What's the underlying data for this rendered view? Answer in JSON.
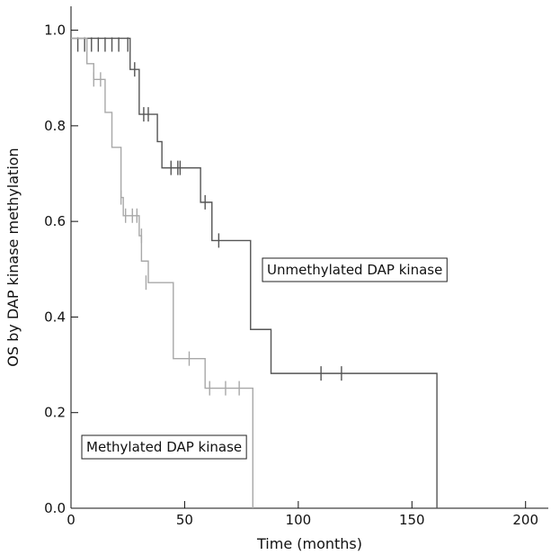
{
  "chart_data": {
    "type": "line",
    "subtype": "kaplan-meier",
    "xlabel": "Time (months)",
    "ylabel": "OS by DAP kinase methylation",
    "xlim": [
      0,
      210
    ],
    "ylim": [
      0,
      1.05
    ],
    "xticks": [
      0,
      50,
      100,
      150,
      200
    ],
    "yticks": [
      0.0,
      0.2,
      0.4,
      0.6,
      0.8,
      1.0
    ],
    "xtick_labels": [
      "0",
      "50",
      "100",
      "150",
      "200"
    ],
    "ytick_labels": [
      "0.0",
      "0.2",
      "0.4",
      "0.6",
      "0.8",
      "1.0"
    ],
    "grid": false,
    "series": [
      {
        "name": "Unmethylated DAP kinase",
        "color": "#555555",
        "steps": [
          [
            0,
            0.983
          ],
          [
            26,
            0.918
          ],
          [
            30,
            0.824
          ],
          [
            38,
            0.767
          ],
          [
            40,
            0.712
          ],
          [
            57,
            0.64
          ],
          [
            62,
            0.56
          ],
          [
            79,
            0.374
          ],
          [
            88,
            0.282
          ],
          [
            161,
            0.282
          ]
        ],
        "end_drop": [
          161,
          0.0
        ],
        "censored": [
          [
            3,
            0.97
          ],
          [
            6,
            0.97
          ],
          [
            9,
            0.97
          ],
          [
            12,
            0.97
          ],
          [
            15,
            0.97
          ],
          [
            18,
            0.97
          ],
          [
            21,
            0.97
          ],
          [
            25,
            0.97
          ],
          [
            28,
            0.918
          ],
          [
            32,
            0.824
          ],
          [
            34,
            0.824
          ],
          [
            44,
            0.712
          ],
          [
            47,
            0.712
          ],
          [
            48,
            0.712
          ],
          [
            59,
            0.64
          ],
          [
            65,
            0.56
          ],
          [
            110,
            0.282
          ],
          [
            119,
            0.282
          ]
        ]
      },
      {
        "name": "Methylated DAP kinase",
        "color": "#a8a8a8",
        "steps": [
          [
            0,
            0.983
          ],
          [
            7,
            0.93
          ],
          [
            10,
            0.897
          ],
          [
            15,
            0.828
          ],
          [
            18,
            0.755
          ],
          [
            22,
            0.65
          ],
          [
            23,
            0.612
          ],
          [
            30,
            0.57
          ],
          [
            31,
            0.517
          ],
          [
            34,
            0.472
          ],
          [
            45,
            0.313
          ],
          [
            59,
            0.251
          ],
          [
            80,
            0.251
          ]
        ],
        "end_drop": [
          80,
          0.0
        ],
        "censored": [
          [
            10,
            0.897
          ],
          [
            13,
            0.897
          ],
          [
            22,
            0.65
          ],
          [
            24,
            0.612
          ],
          [
            27,
            0.612
          ],
          [
            29,
            0.612
          ],
          [
            31,
            0.57
          ],
          [
            33,
            0.472
          ],
          [
            52,
            0.313
          ],
          [
            61,
            0.251
          ],
          [
            68,
            0.251
          ],
          [
            74,
            0.251
          ]
        ]
      }
    ],
    "annotations": [
      {
        "text": "Unmethylated DAP kinase",
        "series": 0
      },
      {
        "text": "Methylated DAP kinase",
        "series": 1
      }
    ]
  }
}
